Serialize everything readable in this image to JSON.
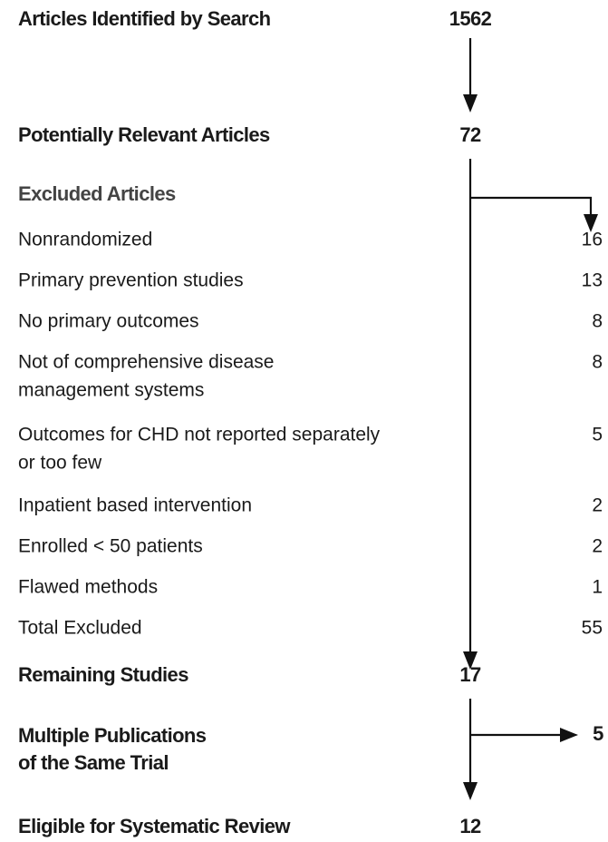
{
  "stages": [
    {
      "label": "Articles Identified by Search",
      "count": 1562
    },
    {
      "label": "Potentially Relevant Articles",
      "count": 72
    },
    {
      "label": "Remaining Studies",
      "count": 17
    },
    {
      "label": "Eligible for Systematic Review",
      "count": 12
    }
  ],
  "excluded": {
    "title": "Excluded Articles",
    "reasons": [
      {
        "label": [
          "Nonrandomized"
        ],
        "count": 16
      },
      {
        "label": [
          "Primary prevention studies"
        ],
        "count": 13
      },
      {
        "label": [
          "No primary outcomes"
        ],
        "count": 8
      },
      {
        "label": [
          "Not of comprehensive disease",
          "management systems"
        ],
        "count": 8
      },
      {
        "label": [
          "Outcomes for CHD not reported separately",
          "or too few"
        ],
        "count": 5
      },
      {
        "label": [
          "Inpatient based intervention"
        ],
        "count": 2
      },
      {
        "label": [
          "Enrolled < 50 patients"
        ],
        "count": 2
      },
      {
        "label": [
          "Flawed methods"
        ],
        "count": 1
      }
    ],
    "total": {
      "label": "Total Excluded",
      "count": 55
    }
  },
  "duplicates": {
    "label": [
      "Multiple Publications",
      "of the Same Trial"
    ],
    "count": 5
  }
}
